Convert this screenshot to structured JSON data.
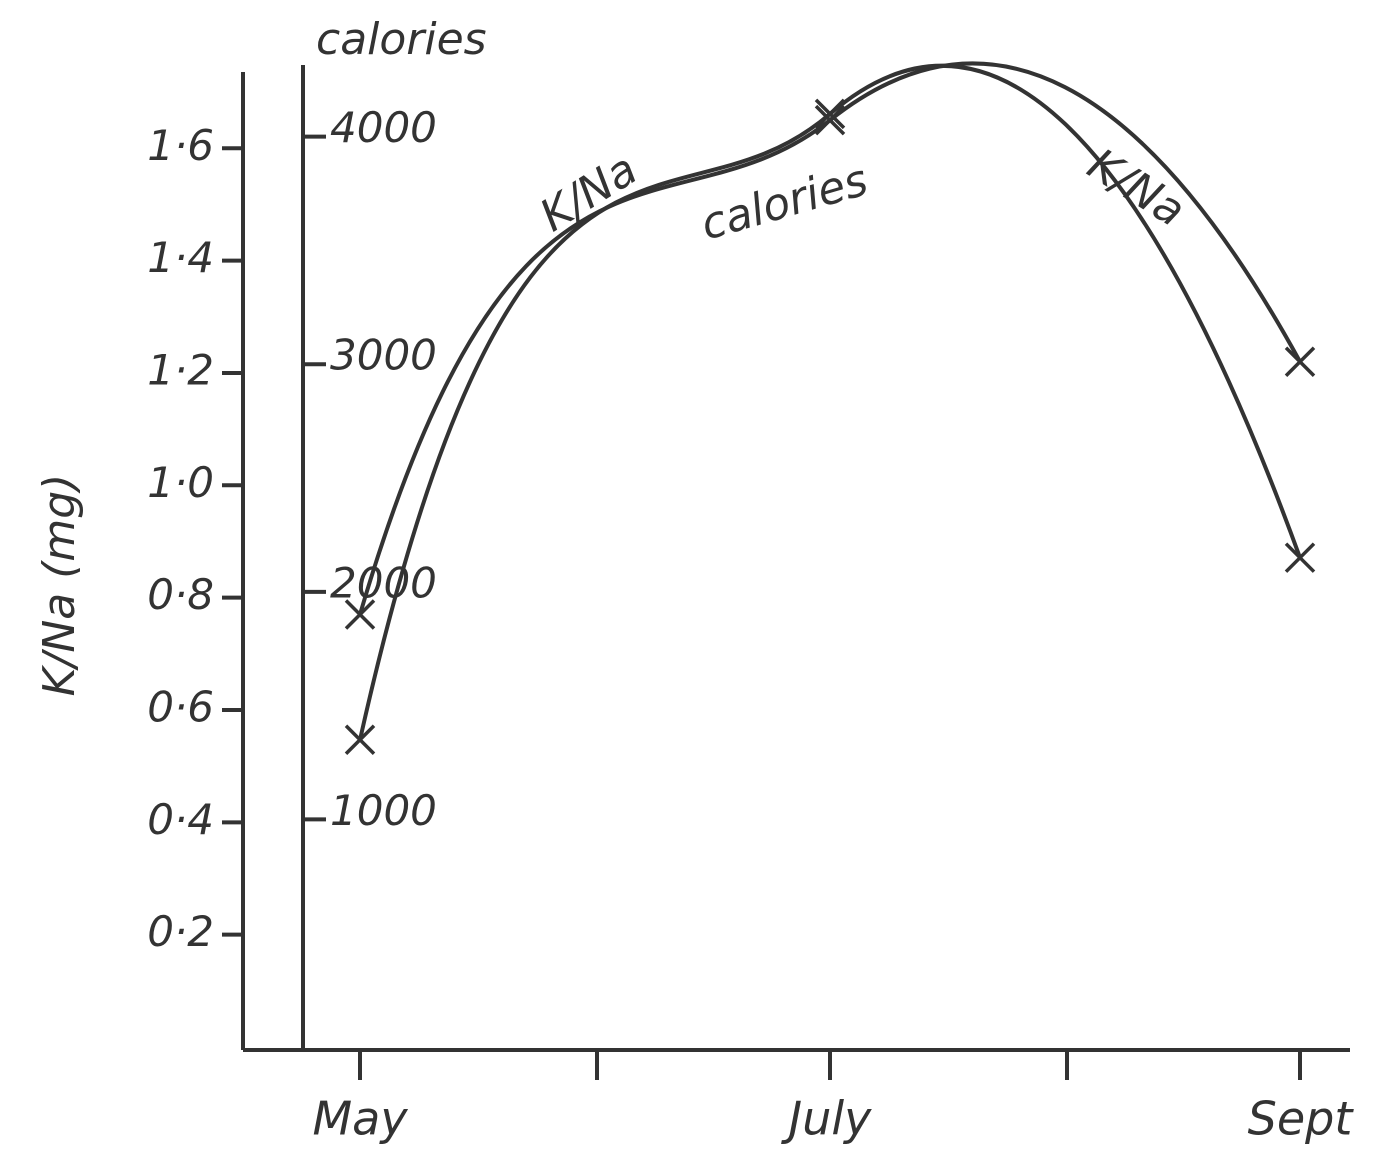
{
  "chart_data": {
    "type": "line",
    "y_label": "K/Na (mg)",
    "y2_label": "calories",
    "categories": [
      "May",
      "July",
      "Sept"
    ],
    "series": [
      {
        "name": "K/Na",
        "color": "#333333",
        "values": [
          0.77,
          1.65,
          1.22
        ]
      },
      {
        "name": "calories",
        "color": "#333333",
        "axis": "y2",
        "values": [
          1350,
          4100,
          2150
        ]
      }
    ],
    "ylim": [
      0,
      1.75
    ],
    "yticks": [
      {
        "value": 0.2,
        "label": "0·2"
      },
      {
        "value": 0.4,
        "label": "0·4"
      },
      {
        "value": 0.6,
        "label": "0·6"
      },
      {
        "value": 0.8,
        "label": "0·8"
      },
      {
        "value": 1.0,
        "label": "1·0"
      },
      {
        "value": 1.2,
        "label": "1·2"
      },
      {
        "value": 1.4,
        "label": "1·4"
      },
      {
        "value": 1.6,
        "label": "1·6"
      }
    ],
    "y2lim": [
      0,
      4350
    ],
    "y2ticks": [
      1000,
      2000,
      3000,
      4000
    ],
    "grid": false
  }
}
